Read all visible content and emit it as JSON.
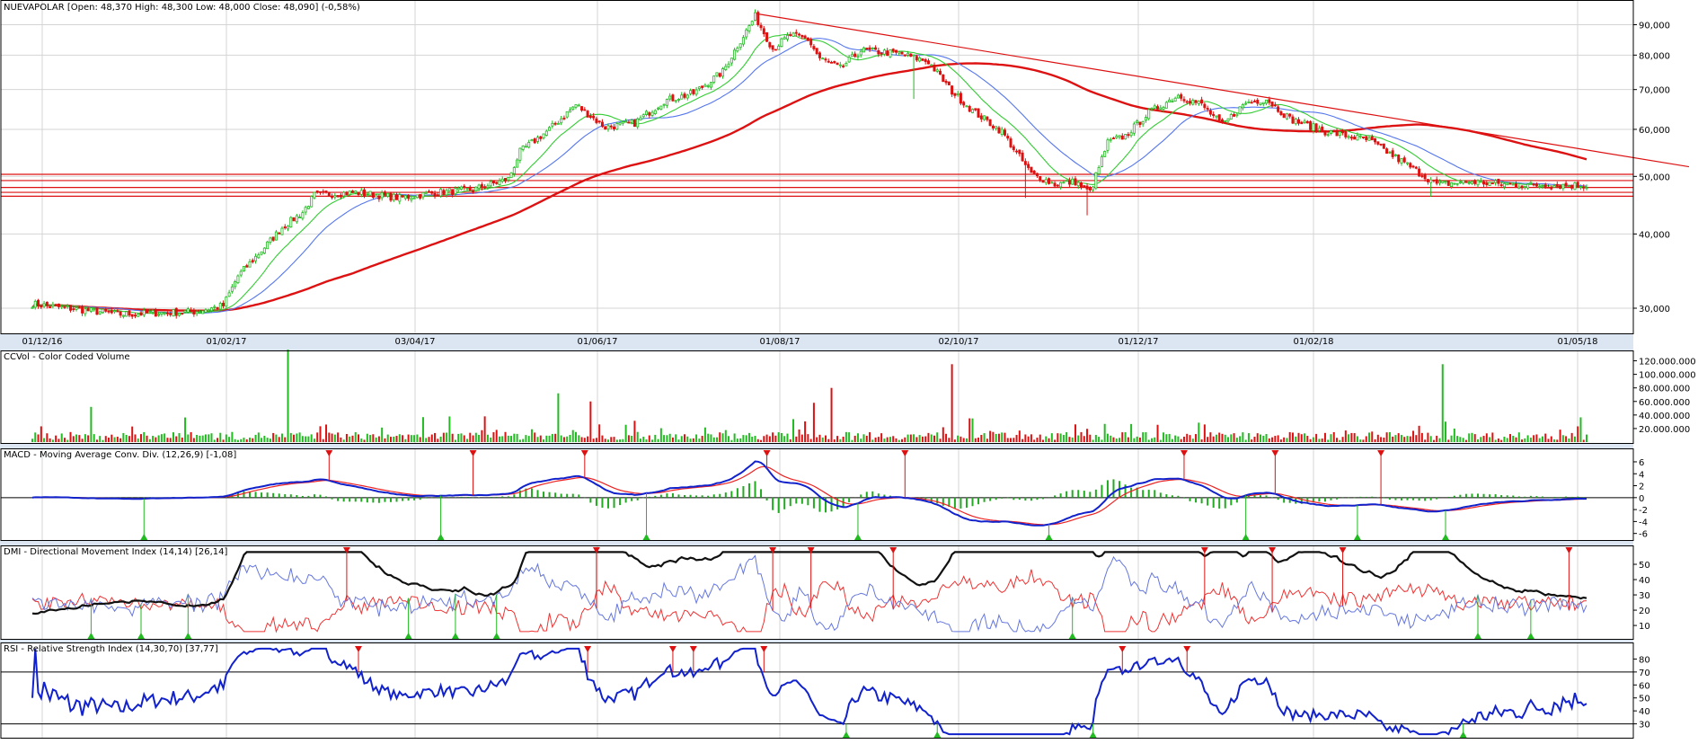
{
  "header": {
    "price_title": "NUEVAPOLAR [Open: 48,370  High: 48,300  Low: 48,000  Close: 48,090] (-0,58%)",
    "volume_title": "CCVol - Color Coded Volume",
    "macd_title": "MACD - Moving Average Conv. Div. (12,26,9) [-1,08]",
    "dmi_title": "DMI - Directional Movement Index (14,14) [26,14]",
    "rsi_title": "RSI - Relative Strength Index (14,30,70) [37,77]"
  },
  "colors": {
    "bull": "#22bb22",
    "bear": "#dd1111",
    "ma_short": "#33cc33",
    "ma_mid": "#5577ee",
    "ma_long": "#dd1111",
    "macd_line": "#1122cc",
    "signal_line": "#ee2222",
    "dmi_plus": "#6677dd",
    "dmi_minus": "#ee3333",
    "adx": "#111111",
    "rsi": "#1122cc",
    "panel_border": "#000000",
    "separator": "#dce6f2",
    "grid": "#d4d4d4"
  },
  "chart_data": [
    {
      "type": "candlestick",
      "title": "NUEVAPOLAR [Open: 48,370  High: 48,300  Low: 48,000  Close: 48,090] (-0,58%)",
      "scale": "log",
      "ylim": [
        27500,
        97000
      ],
      "x_ticks": [
        "01/12/16",
        "01/02/17",
        "03/04/17",
        "01/06/17",
        "01/08/17",
        "02/10/17",
        "01/12/17",
        "01/02/18",
        "01/05/18"
      ],
      "y_ticks": [
        30000,
        40000,
        50000,
        60000,
        70000,
        80000,
        90000
      ],
      "y_tick_labels": [
        "30,000",
        "40,000",
        "50,000",
        "60,000",
        "70,000",
        "80,000",
        "90,000"
      ],
      "keypoints": [
        [
          0,
          30500
        ],
        [
          30,
          29300
        ],
        [
          55,
          29600
        ],
        [
          65,
          30300
        ],
        [
          70,
          34000
        ],
        [
          78,
          37500
        ],
        [
          85,
          41000
        ],
        [
          92,
          43500
        ],
        [
          96,
          46500
        ],
        [
          110,
          47000
        ],
        [
          125,
          46000
        ],
        [
          138,
          47000
        ],
        [
          150,
          47500
        ],
        [
          162,
          49500
        ],
        [
          166,
          55000
        ],
        [
          176,
          60000
        ],
        [
          185,
          66000
        ],
        [
          195,
          60500
        ],
        [
          205,
          61500
        ],
        [
          215,
          67000
        ],
        [
          225,
          69000
        ],
        [
          235,
          75000
        ],
        [
          240,
          83000
        ],
        [
          246,
          93000
        ],
        [
          252,
          82000
        ],
        [
          258,
          86500
        ],
        [
          264,
          85000
        ],
        [
          268,
          79000
        ],
        [
          275,
          76000
        ],
        [
          282,
          81500
        ],
        [
          295,
          80500
        ],
        [
          305,
          78000
        ],
        [
          313,
          69500
        ],
        [
          320,
          64500
        ],
        [
          330,
          59500
        ],
        [
          340,
          50500
        ],
        [
          348,
          48500
        ],
        [
          355,
          49000
        ],
        [
          360,
          47000
        ],
        [
          366,
          57000
        ],
        [
          372,
          58500
        ],
        [
          380,
          64000
        ],
        [
          390,
          68500
        ],
        [
          398,
          66000
        ],
        [
          405,
          61000
        ],
        [
          413,
          66500
        ],
        [
          420,
          67500
        ],
        [
          428,
          62500
        ],
        [
          440,
          59500
        ],
        [
          455,
          57500
        ],
        [
          470,
          51500
        ],
        [
          478,
          48500
        ],
        [
          490,
          49000
        ],
        [
          500,
          48500
        ],
        [
          510,
          48300
        ]
      ],
      "overlays": [
        {
          "name": "MA short",
          "color": "#33cc33",
          "period": 15
        },
        {
          "name": "MA mid",
          "color": "#5577ee",
          "period": 30
        },
        {
          "name": "MA long",
          "color": "#dd1111",
          "period": 110
        }
      ],
      "trendline": {
        "from": [
          246,
          94000
        ],
        "to": [
          532,
          53000
        ]
      },
      "horizontal_levels": [
        50400,
        49200,
        47900,
        47000,
        46300
      ]
    },
    {
      "type": "bar",
      "title": "CCVol - Color Coded Volume",
      "ylim": [
        0,
        130000000
      ],
      "y_ticks": [
        20000000,
        40000000,
        60000000,
        80000000,
        100000000,
        120000000
      ],
      "y_tick_labels": [
        "20.000.000",
        "40.000.000",
        "60.000.000",
        "80.000.000",
        "100.000.000",
        "120.000.000"
      ],
      "spikes": [
        [
          87,
          140000000
        ],
        [
          313,
          115000000
        ],
        [
          480,
          115000000
        ],
        [
          20,
          52000000
        ],
        [
          179,
          72000000
        ],
        [
          272,
          80000000
        ],
        [
          266,
          58000000
        ],
        [
          190,
          60000000
        ],
        [
          154,
          38000000
        ]
      ]
    },
    {
      "type": "line",
      "title": "MACD - Moving Average Conv. Div. (12,26,9) [-1,08]",
      "ylim": [
        -6.5,
        7.5
      ],
      "y_ticks": [
        -6,
        -4,
        -2,
        0,
        2,
        4,
        6
      ],
      "y_tick_labels": [
        "-6",
        "-4",
        "-2",
        "0",
        "2",
        "4",
        "6"
      ],
      "series": [
        {
          "name": "MACD",
          "color": "#1122cc"
        },
        {
          "name": "Signal",
          "color": "#ee2222"
        },
        {
          "name": "Histogram",
          "color": "#22aa22"
        }
      ]
    },
    {
      "type": "line",
      "title": "DMI - Directional Movement Index (14,14) [26,14]",
      "ylim": [
        3,
        60
      ],
      "y_ticks": [
        10,
        20,
        30,
        40,
        50
      ],
      "y_tick_labels": [
        "10",
        "20",
        "30",
        "40",
        "50"
      ],
      "series": [
        {
          "name": "+DI",
          "color": "#6677dd"
        },
        {
          "name": "-DI",
          "color": "#ee3333"
        },
        {
          "name": "ADX",
          "color": "#111111"
        }
      ]
    },
    {
      "type": "line",
      "title": "RSI - Relative Strength Index (14,30,70) [37,77]",
      "ylim": [
        20,
        90
      ],
      "y_ticks": [
        30,
        40,
        50,
        60,
        70,
        80
      ],
      "y_tick_labels": [
        "30",
        "40",
        "50",
        "60",
        "70",
        "80"
      ],
      "levels": [
        30,
        70
      ],
      "series": [
        {
          "name": "RSI",
          "color": "#1122cc"
        }
      ]
    }
  ]
}
